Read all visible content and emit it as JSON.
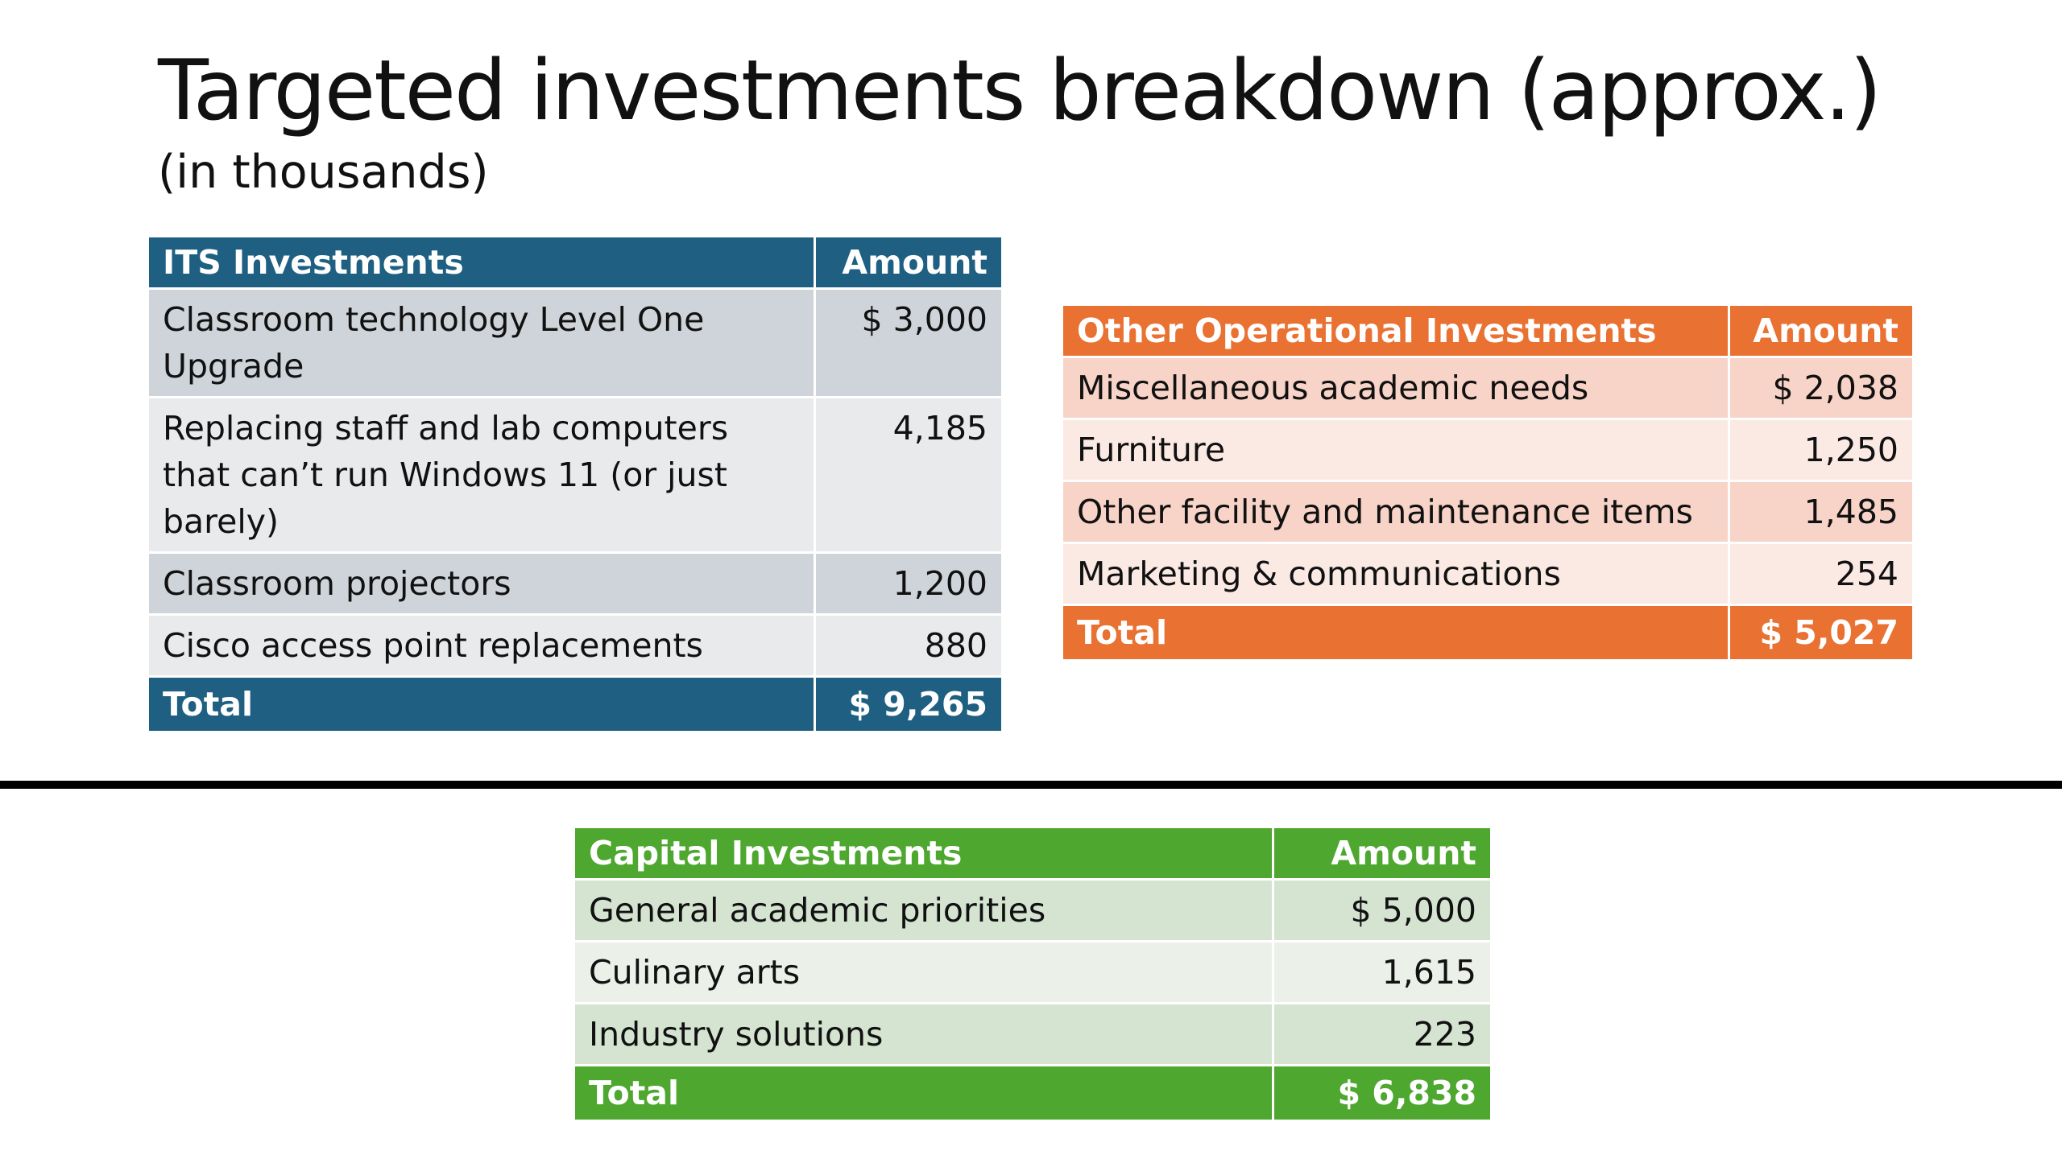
{
  "slide": {
    "title": "Targeted investments breakdown (approx.)",
    "subtitle": "(in thousands)"
  },
  "colors": {
    "its_header": "#1e5f82",
    "other_header": "#e97132",
    "capital_header": "#4ea72e"
  },
  "its": {
    "header": "ITS Investments",
    "amount_header": "Amount",
    "rows": [
      {
        "item": "Classroom technology Level One Upgrade",
        "amount": "$ 3,000"
      },
      {
        "item": "Replacing staff and lab computers that can’t run Windows 11 (or just barely)",
        "amount": "4,185"
      },
      {
        "item": "Classroom projectors",
        "amount": "1,200"
      },
      {
        "item": "Cisco access point replacements",
        "amount": "880"
      }
    ],
    "total_label": "Total",
    "total_amount": "$ 9,265"
  },
  "other": {
    "header": "Other Operational Investments",
    "amount_header": "Amount",
    "rows": [
      {
        "item": "Miscellaneous academic needs",
        "amount": "$ 2,038"
      },
      {
        "item": "Furniture",
        "amount": "1,250"
      },
      {
        "item": "Other facility and maintenance items",
        "amount": "1,485"
      },
      {
        "item": "Marketing & communications",
        "amount": "254"
      }
    ],
    "total_label": "Total",
    "total_amount": "$ 5,027"
  },
  "capital": {
    "header": "Capital Investments",
    "amount_header": "Amount",
    "rows": [
      {
        "item": "General academic priorities",
        "amount": "$ 5,000"
      },
      {
        "item": "Culinary arts",
        "amount": "1,615"
      },
      {
        "item": "Industry solutions",
        "amount": "223"
      }
    ],
    "total_label": "Total",
    "total_amount": "$ 6,838"
  }
}
